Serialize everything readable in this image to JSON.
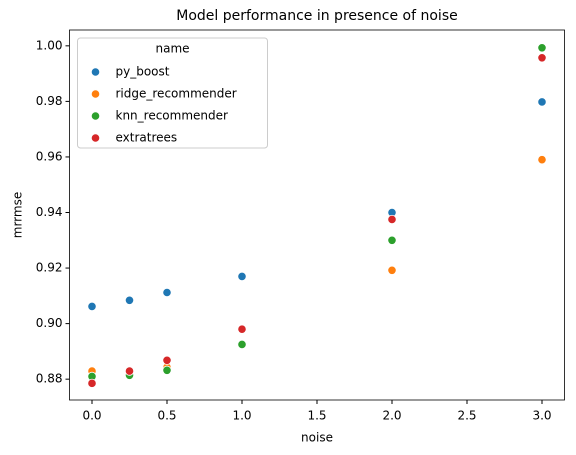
{
  "chart_data": {
    "type": "scatter",
    "title": "Model performance in presence of noise",
    "xlabel": "noise",
    "ylabel": "mrrmse",
    "x": [
      0,
      0.25,
      0.5,
      1,
      2,
      3
    ],
    "series": [
      {
        "name": "py_boost",
        "color": "#1f77b4",
        "values": [
          0.9062,
          0.9084,
          0.9112,
          0.917,
          0.94,
          0.9798
        ]
      },
      {
        "name": "ridge_recommender",
        "color": "#ff7f0e",
        "values": [
          0.8829,
          0.882,
          0.8843,
          0.8925,
          0.9192,
          0.959
        ]
      },
      {
        "name": "knn_recommender",
        "color": "#2ca02c",
        "values": [
          0.881,
          0.8814,
          0.8832,
          0.8925,
          0.93,
          0.9993
        ]
      },
      {
        "name": "extratrees",
        "color": "#d62728",
        "values": [
          0.8785,
          0.8829,
          0.8868,
          0.898,
          0.9375,
          0.9957
        ]
      }
    ],
    "xlim": [
      -0.15,
      3.15
    ],
    "xticks": [
      {
        "value": 0,
        "label": "0.0"
      },
      0.5,
      {
        "value": 1,
        "label": "1.0"
      },
      1.5,
      {
        "value": 2,
        "label": "2.0"
      },
      2.5,
      {
        "value": 3,
        "label": "3.0"
      }
    ],
    "ylim": [
      0.8725,
      1.0057
    ],
    "yticks": [
      0.88,
      {
        "value": 0.9,
        "label": "0.90"
      },
      0.92,
      0.94,
      0.96,
      0.98,
      {
        "value": 1,
        "label": "1.00"
      }
    ],
    "legend": "upper left",
    "legend_title": "name",
    "grid": false
  }
}
